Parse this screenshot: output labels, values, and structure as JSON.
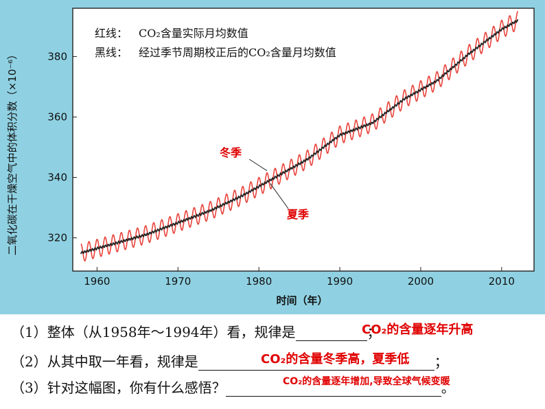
{
  "chart_data": {
    "type": "line",
    "ylabel": "二氧化碳在干燥空气中的体积分数（×10⁻⁶）",
    "xlabel": "时间（年）",
    "xlim": [
      1957,
      2014
    ],
    "ylim": [
      309,
      396
    ],
    "x_ticks": [
      1960,
      1970,
      1980,
      1990,
      2000,
      2010
    ],
    "y_ticks": [
      320,
      340,
      360,
      380
    ],
    "grid": false,
    "legend": {
      "red_label": "红线：",
      "red_text": "CO₂含量实际月均数值",
      "black_label": "黑线：",
      "black_text": "经过季节周期校正后的CO₂含量月均数值"
    },
    "series": [
      {
        "name": "CO₂含量实际月均数值",
        "color": "#e8423a",
        "seasonal_amplitude": 3.0,
        "x": [
          1958,
          1962,
          1966,
          1970,
          1974,
          1978,
          1982,
          1986,
          1990,
          1994,
          1998,
          2002,
          2006,
          2010,
          2012
        ],
        "y": [
          315.0,
          318.0,
          321.0,
          325.0,
          329.0,
          334.0,
          340.0,
          346.0,
          354.0,
          358.0,
          366.0,
          372.0,
          381.0,
          389.0,
          392.0
        ]
      },
      {
        "name": "经过季节周期校正后的CO₂含量月均数值",
        "color": "#222222",
        "x": [
          1958,
          1962,
          1966,
          1970,
          1974,
          1978,
          1982,
          1986,
          1990,
          1994,
          1998,
          2002,
          2006,
          2010,
          2012
        ],
        "y": [
          315.0,
          318.0,
          321.0,
          325.0,
          329.0,
          334.0,
          340.0,
          346.0,
          354.0,
          358.0,
          366.0,
          372.0,
          381.0,
          389.0,
          392.0
        ]
      }
    ],
    "annotations": [
      {
        "text": "冬季",
        "x": 1981.0,
        "y": 342.2
      },
      {
        "text": "夏季",
        "x": 1981.4,
        "y": 338.0
      }
    ]
  },
  "questions": [
    {
      "prefix": "（1）整体（从1958年～1994年）看，规律是",
      "answer": "CO₂的含量逐年升高",
      "suffix": "；"
    },
    {
      "prefix": "（2）从其中取一年看，规律是",
      "answer": "CO₂的含量冬季高，夏季低",
      "suffix": "；"
    },
    {
      "prefix": "（3）针对这幅图，你有什么感悟？",
      "answer": "CO₂的含量逐年增加,导致全球气候变暖",
      "suffix": "。"
    }
  ],
  "colors": {
    "background": "#8fd1e2",
    "plot_background": "#ffffff",
    "red_line": "#e8423a",
    "black_line": "#222222",
    "answer": "#e00000"
  }
}
